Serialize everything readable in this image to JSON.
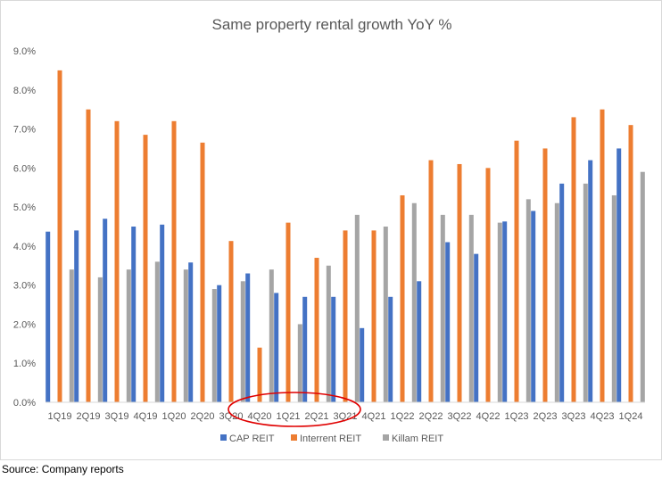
{
  "chart_data": {
    "type": "bar",
    "title": "Same property rental growth YoY %",
    "xlabel": "",
    "ylabel": "",
    "ylim": [
      0,
      9
    ],
    "yticks": [
      "0.0%",
      "1.0%",
      "2.0%",
      "3.0%",
      "4.0%",
      "5.0%",
      "6.0%",
      "7.0%",
      "8.0%",
      "9.0%"
    ],
    "categories": [
      "1Q19",
      "2Q19",
      "3Q19",
      "4Q19",
      "1Q20",
      "2Q20",
      "3Q20",
      "4Q20",
      "1Q21",
      "2Q21",
      "3Q21",
      "4Q21",
      "1Q22",
      "2Q22",
      "3Q22",
      "4Q22",
      "1Q23",
      "2Q23",
      "3Q23",
      "4Q23",
      "1Q24"
    ],
    "series": [
      {
        "name": "CAP REIT",
        "color": "#4472c4",
        "values": [
          4.37,
          4.4,
          4.7,
          4.5,
          4.55,
          3.58,
          3.0,
          3.3,
          2.8,
          2.7,
          2.7,
          1.9,
          2.7,
          3.1,
          4.1,
          3.8,
          4.63,
          4.9,
          5.6,
          6.2,
          6.5
        ]
      },
      {
        "name": "Interrent REIT",
        "color": "#ed7d31",
        "values": [
          8.5,
          7.5,
          7.2,
          6.85,
          7.2,
          6.65,
          4.13,
          1.4,
          4.6,
          3.7,
          4.4,
          4.4,
          5.3,
          6.2,
          6.1,
          6.0,
          6.7,
          6.5,
          7.3,
          7.5,
          7.1
        ]
      },
      {
        "name": "Killam REIT",
        "color": "#a5a5a5",
        "values": [
          3.4,
          3.2,
          3.4,
          3.6,
          3.4,
          2.9,
          3.1,
          3.4,
          2.0,
          3.5,
          4.8,
          4.5,
          5.1,
          4.8,
          4.8,
          4.6,
          5.2,
          5.1,
          5.6,
          5.3,
          5.9
        ]
      }
    ],
    "annotation": {
      "type": "ellipse",
      "color": "#e00000",
      "highlights": [
        "4Q20",
        "1Q21",
        "2Q21",
        "3Q21"
      ]
    },
    "grid": false,
    "legend": "bottom"
  },
  "source": "Source: Company reports"
}
